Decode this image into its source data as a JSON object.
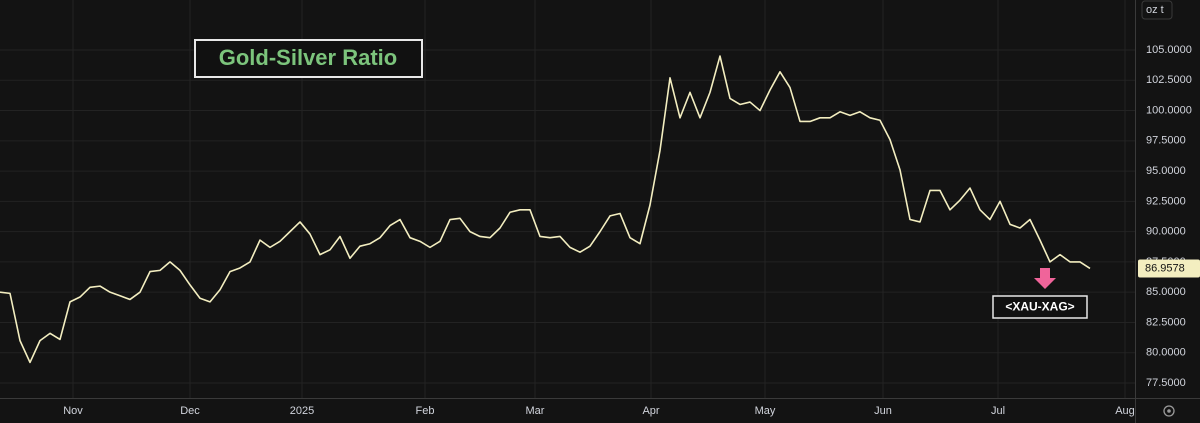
{
  "chart_data": {
    "type": "line",
    "title": "Gold-Silver Ratio",
    "unit_label": "oz t",
    "series": [
      {
        "name": "<XAU-XAG>",
        "color": "#f3eec0",
        "values": [
          85.0,
          84.9,
          81.0,
          79.2,
          81.0,
          81.6,
          81.1,
          84.2,
          84.6,
          85.4,
          85.5,
          85.0,
          84.7,
          84.4,
          85.0,
          86.7,
          86.8,
          87.5,
          86.8,
          85.6,
          84.5,
          84.2,
          85.2,
          86.7,
          87.0,
          87.5,
          89.3,
          88.7,
          89.2,
          90.0,
          90.8,
          89.8,
          88.1,
          88.5,
          89.6,
          87.8,
          88.8,
          89.0,
          89.5,
          90.5,
          91.0,
          89.5,
          89.2,
          88.7,
          89.2,
          91.0,
          91.1,
          90.0,
          89.6,
          89.5,
          90.3,
          91.6,
          91.8,
          91.8,
          89.6,
          89.5,
          89.6,
          88.7,
          88.3,
          88.8,
          90.0,
          91.3,
          91.5,
          89.5,
          89.0,
          92.2,
          96.7,
          102.7,
          99.4,
          101.5,
          99.4,
          101.5,
          104.5,
          101.0,
          100.5,
          100.7,
          100.0,
          101.7,
          103.2,
          101.9,
          99.1,
          99.1,
          99.4,
          99.4,
          99.9,
          99.6,
          99.9,
          99.4,
          99.2,
          97.6,
          95.1,
          91.0,
          90.8,
          93.4,
          93.4,
          91.8,
          92.6,
          93.6,
          91.8,
          91.0,
          92.5,
          90.6,
          90.3,
          91.0,
          89.3,
          87.5,
          88.1,
          87.5,
          87.5,
          86.9578
        ]
      }
    ],
    "xlim": [
      0,
      113.5
    ],
    "xticks": [
      {
        "value": 7.3,
        "label": "Nov"
      },
      {
        "value": 19.0,
        "label": "Dec"
      },
      {
        "value": 30.2,
        "label": "2025"
      },
      {
        "value": 42.5,
        "label": "Feb"
      },
      {
        "value": 53.5,
        "label": "Mar"
      },
      {
        "value": 65.1,
        "label": "Apr"
      },
      {
        "value": 76.5,
        "label": "May"
      },
      {
        "value": 88.3,
        "label": "Jun"
      },
      {
        "value": 99.8,
        "label": "Jul"
      },
      {
        "value": 112.5,
        "label": "Aug"
      }
    ],
    "ylim": [
      76.26,
      109.13
    ],
    "yticks": [
      {
        "value": 77.5,
        "label": "77.5000"
      },
      {
        "value": 80,
        "label": "80.0000"
      },
      {
        "value": 82.5,
        "label": "82.5000"
      },
      {
        "value": 85,
        "label": "85.0000"
      },
      {
        "value": 87.5,
        "label": "87.5000"
      },
      {
        "value": 90,
        "label": "90.0000"
      },
      {
        "value": 92.5,
        "label": "92.5000"
      },
      {
        "value": 95,
        "label": "95.0000"
      },
      {
        "value": 97.5,
        "label": "97.5000"
      },
      {
        "value": 100,
        "label": "100.0000"
      },
      {
        "value": 102.5,
        "label": "102.5000"
      },
      {
        "value": 105,
        "label": "105.0000"
      }
    ],
    "grid": true
  }
}
